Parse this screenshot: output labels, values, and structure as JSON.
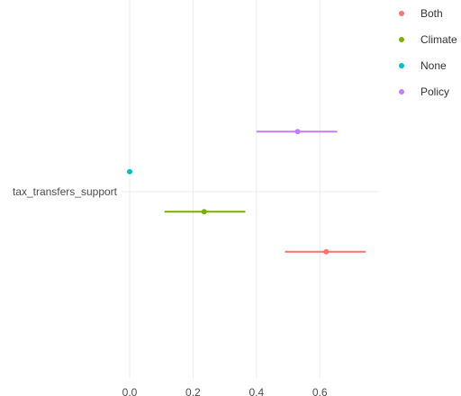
{
  "chart_data": {
    "type": "scatter",
    "title": "",
    "xlabel": "",
    "ylabel": "",
    "categories": [
      "tax_transfers_support"
    ],
    "xlim": [
      -0.02,
      0.78
    ],
    "xticks": [
      0.0,
      0.2,
      0.4,
      0.6
    ],
    "xtick_labels": [
      "0.0",
      "0.2",
      "0.4",
      "0.6"
    ],
    "grid": true,
    "legend_position": "top-right",
    "series": [
      {
        "name": "Both",
        "color": "#F8766D",
        "estimate": 0.62,
        "ci_low": 0.49,
        "ci_high": 0.745
      },
      {
        "name": "Climate",
        "color": "#7CAE00",
        "estimate": 0.235,
        "ci_low": 0.11,
        "ci_high": 0.365
      },
      {
        "name": "None",
        "color": "#00BFC4",
        "estimate": 0.0,
        "ci_low": 0.0,
        "ci_high": 0.0
      },
      {
        "name": "Policy",
        "color": "#C77CFF",
        "estimate": 0.53,
        "ci_low": 0.4,
        "ci_high": 0.655
      }
    ]
  }
}
